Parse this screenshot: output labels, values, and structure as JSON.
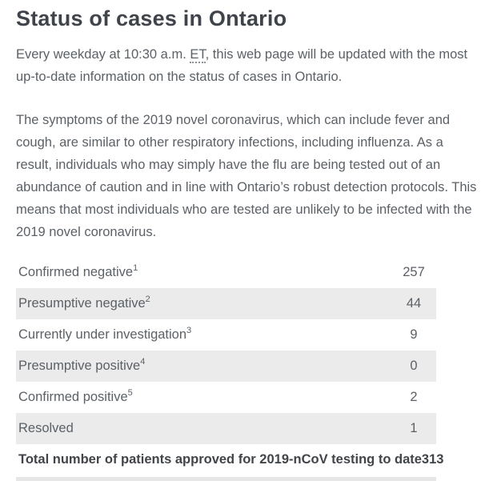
{
  "page": {
    "title": "Status of cases in Ontario",
    "intro": {
      "before_abbr": "Every weekday at 10:30 a.m. ",
      "abbr": "ET",
      "after_abbr": ", this web page will be updated with the most up-to-date information on the status of cases in Ontario."
    },
    "symptoms_paragraph": "The symptoms of the 2019 novel coronavirus, which can include fever and cough, are similar to other respiratory infections, including influenza. As a result, individuals who may simply have the flu are being tested out of an abundance of caution and in line with Ontario’s robust detection protocols. This means that most individuals who are tested are unlikely to be infected with the 2019 novel coronavirus."
  },
  "table": {
    "rows": [
      {
        "label": "Confirmed negative",
        "footnote": "1",
        "value": "257"
      },
      {
        "label": "Presumptive negative",
        "footnote": "2",
        "value": "44"
      },
      {
        "label": "Currently under investigation",
        "footnote": "3",
        "value": "9"
      },
      {
        "label": "Presumptive positive",
        "footnote": "4",
        "value": "0"
      },
      {
        "label": "Confirmed positive",
        "footnote": "5",
        "value": "2"
      },
      {
        "label": "Resolved",
        "footnote": "",
        "value": "1"
      }
    ],
    "total": {
      "label": "Total number of patients approved for 2019-nCoV testing to date",
      "value": "313"
    }
  },
  "colors": {
    "heading_text": "#3f434a",
    "body_text": "#5b6167",
    "stripe_background": "#ebebeb",
    "separator_bar": "#e7e7e7"
  }
}
